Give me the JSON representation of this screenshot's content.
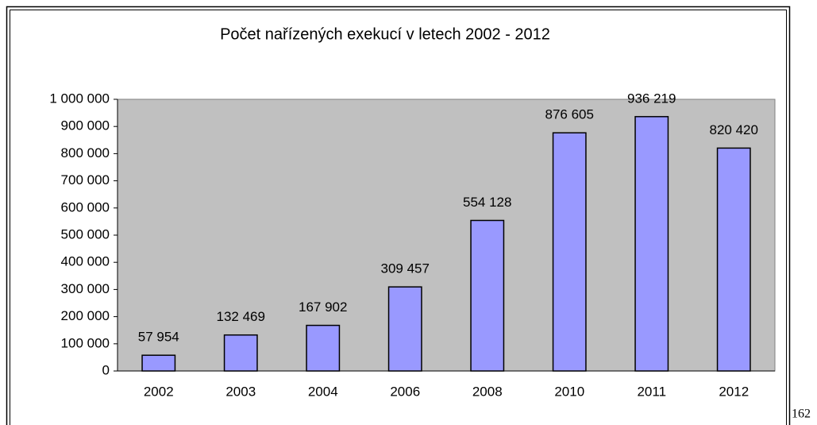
{
  "chart_data": {
    "type": "bar",
    "title": "Počet nařízených exekucí v letech 2002 - 2012",
    "categories": [
      "2002",
      "2003",
      "2004",
      "2006",
      "2008",
      "2010",
      "2011",
      "2012"
    ],
    "values": [
      57954,
      132469,
      167902,
      309457,
      554128,
      876605,
      936219,
      820420
    ],
    "value_labels": [
      "57 954",
      "132 469",
      "167 902",
      "309 457",
      "554 128",
      "876 605",
      "936 219",
      "820 420"
    ],
    "color": "#9999ff",
    "ylim": [
      0,
      1000000
    ],
    "yticks": [
      0,
      {
        "value": 100000,
        "label": "100 000"
      },
      {
        "value": 200000,
        "label": "200 000"
      },
      {
        "value": 300000,
        "label": "300 000"
      },
      {
        "value": 400000,
        "label": "400 000"
      },
      {
        "value": 500000,
        "label": "500 000"
      },
      {
        "value": 600000,
        "label": "600 000"
      },
      {
        "value": 700000,
        "label": "700 000"
      },
      {
        "value": 800000,
        "label": "800 000"
      },
      {
        "value": 900000,
        "label": "900 000"
      },
      {
        "value": 1000000,
        "label": "1 000 000"
      }
    ],
    "grid": false
  },
  "page_number": "162"
}
